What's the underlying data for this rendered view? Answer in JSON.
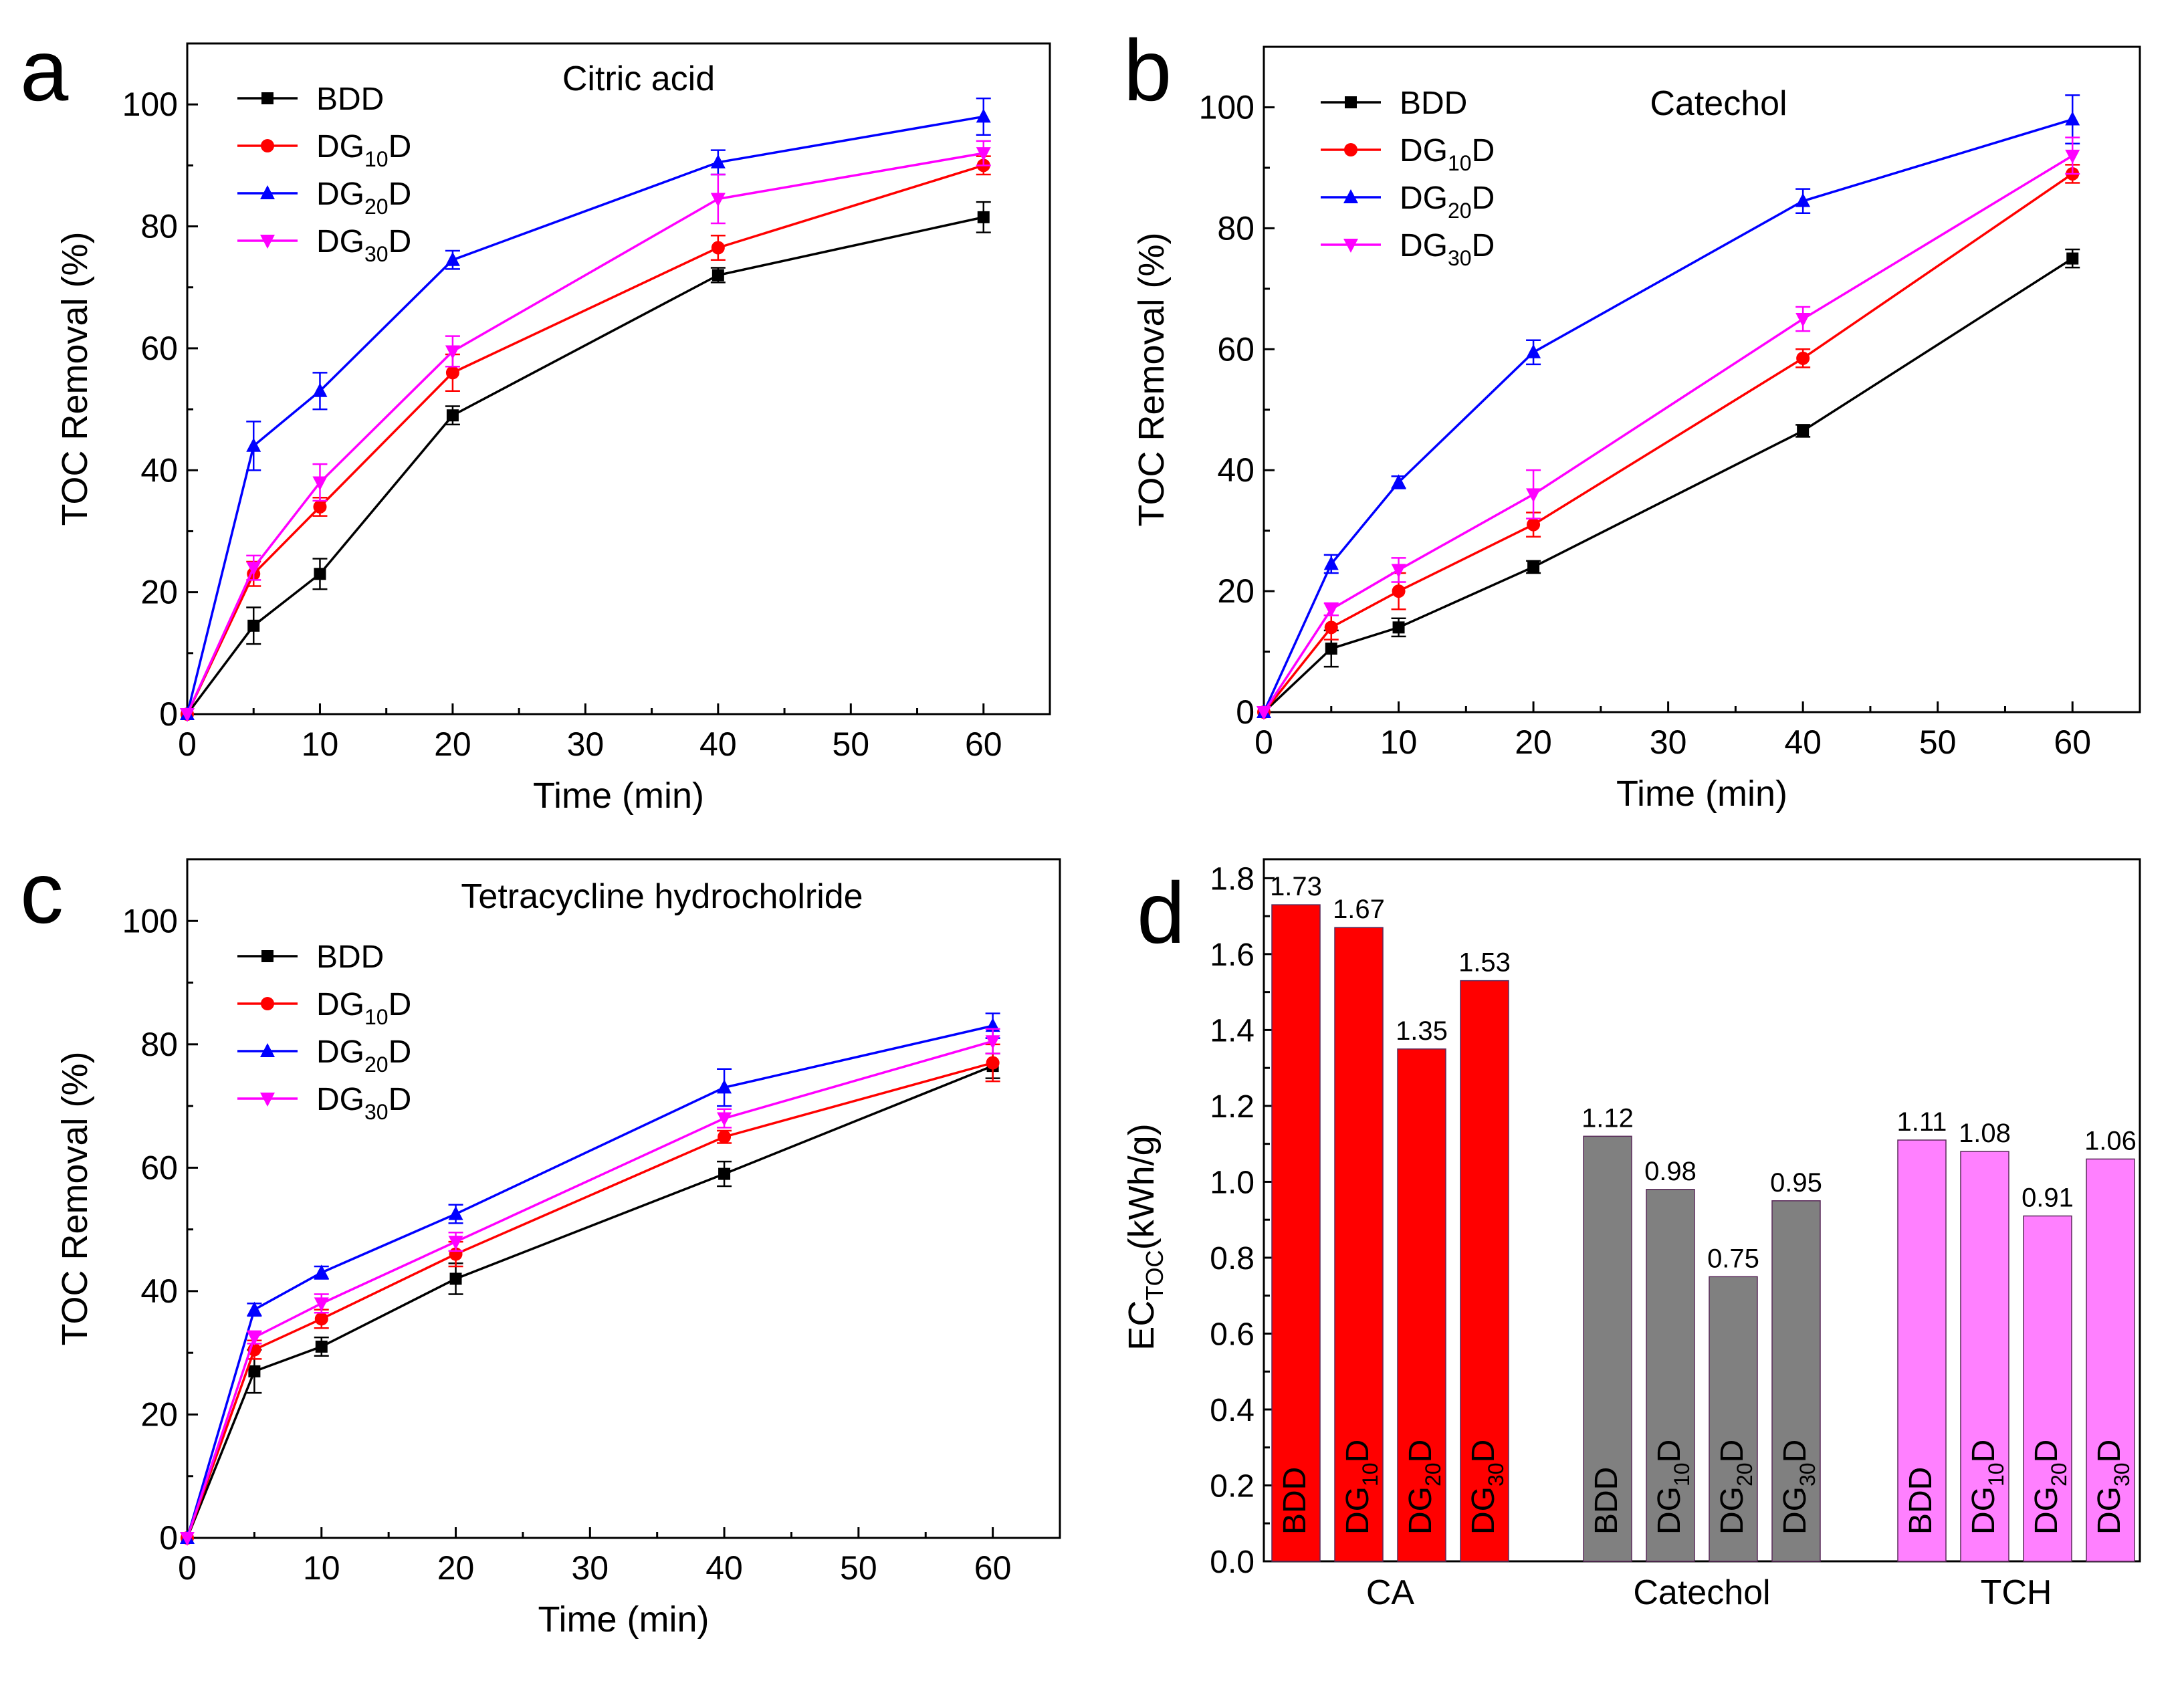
{
  "figure": {
    "panels": [
      {
        "letter": "a",
        "title": "Citric acid"
      },
      {
        "letter": "b",
        "title": "Catechol"
      },
      {
        "letter": "c",
        "title": "Tetracycline hydrocholride"
      },
      {
        "letter": "d",
        "title": ""
      }
    ]
  },
  "colors": {
    "BDD": "#000000",
    "DG10D": "#ff0000",
    "DG20D": "#0000ff",
    "DG30D": "#ff00ff",
    "gray": "#808080",
    "pink": "#ff80ff"
  },
  "chart_data": [
    {
      "type": "line",
      "panel": "a",
      "title": "Citric acid",
      "xlabel": "Time (min)",
      "ylabel": "TOC Removal (%)",
      "xlim": [
        0,
        65
      ],
      "ylim": [
        0,
        110
      ],
      "xticks": [
        0,
        10,
        20,
        30,
        40,
        50,
        60
      ],
      "yticks": [
        0,
        20,
        40,
        60,
        80,
        100
      ],
      "x": [
        0,
        5,
        10,
        20,
        40,
        60
      ],
      "series": [
        {
          "name": "BDD",
          "base": "BDD",
          "sub": "",
          "color": "#000000",
          "marker": "square",
          "values": [
            0,
            14.5,
            23,
            49,
            72,
            81.5
          ],
          "errors": [
            0,
            3,
            2.5,
            1.5,
            1.2,
            2.5
          ]
        },
        {
          "name": "DG10D",
          "base": "DG",
          "sub": "10",
          "color": "#ff0000",
          "marker": "circle",
          "values": [
            0,
            23,
            34,
            56,
            76.5,
            90
          ],
          "errors": [
            0,
            2,
            1.5,
            3,
            2,
            1.5
          ]
        },
        {
          "name": "DG20D",
          "base": "DG",
          "sub": "20",
          "color": "#0000ff",
          "marker": "triangle-up",
          "values": [
            0,
            44,
            53,
            74.5,
            90.5,
            98
          ],
          "errors": [
            0,
            4,
            3,
            1.5,
            2,
            3
          ]
        },
        {
          "name": "DG30D",
          "base": "DG",
          "sub": "30",
          "color": "#ff00ff",
          "marker": "triangle-down",
          "values": [
            0,
            24,
            38,
            59.5,
            84.5,
            92
          ],
          "errors": [
            0,
            2,
            3,
            2.5,
            4,
            2
          ]
        }
      ]
    },
    {
      "type": "line",
      "panel": "b",
      "title": "Catechol",
      "xlabel": "Time (min)",
      "ylabel": "TOC Removal (%)",
      "xlim": [
        0,
        65
      ],
      "ylim": [
        0,
        110
      ],
      "xticks": [
        0,
        10,
        20,
        30,
        40,
        50,
        60
      ],
      "yticks": [
        0,
        20,
        40,
        60,
        80,
        100
      ],
      "x": [
        0,
        5,
        10,
        20,
        40,
        60
      ],
      "series": [
        {
          "name": "BDD",
          "base": "BDD",
          "sub": "",
          "color": "#000000",
          "marker": "square",
          "values": [
            0,
            10.5,
            14,
            24,
            46.5,
            75
          ],
          "errors": [
            0,
            3,
            1.5,
            1,
            1,
            1.5
          ]
        },
        {
          "name": "DG10D",
          "base": "DG",
          "sub": "10",
          "color": "#ff0000",
          "marker": "circle",
          "values": [
            0,
            14,
            20,
            31,
            58.5,
            89
          ],
          "errors": [
            0,
            2,
            3,
            2,
            1.5,
            1.5
          ]
        },
        {
          "name": "DG20D",
          "base": "DG",
          "sub": "20",
          "color": "#0000ff",
          "marker": "triangle-up",
          "values": [
            0,
            24.5,
            38,
            59.5,
            84.5,
            98
          ],
          "errors": [
            0,
            1.5,
            1,
            2,
            2,
            4
          ]
        },
        {
          "name": "DG30D",
          "base": "DG",
          "sub": "30",
          "color": "#ff00ff",
          "marker": "triangle-down",
          "values": [
            0,
            17,
            23.5,
            36,
            65,
            92
          ],
          "errors": [
            0,
            1,
            2,
            4,
            2,
            3
          ]
        }
      ]
    },
    {
      "type": "line",
      "panel": "c",
      "title": "Tetracycline hydrocholride",
      "xlabel": "Time (min)",
      "ylabel": "TOC Removal (%)",
      "xlim": [
        0,
        65
      ],
      "ylim": [
        0,
        110
      ],
      "xticks": [
        0,
        10,
        20,
        30,
        40,
        50,
        60
      ],
      "yticks": [
        0,
        20,
        40,
        60,
        80,
        100
      ],
      "x": [
        0,
        5,
        10,
        20,
        40,
        60
      ],
      "series": [
        {
          "name": "BDD",
          "base": "BDD",
          "sub": "",
          "color": "#000000",
          "marker": "square",
          "values": [
            0,
            27,
            31,
            42,
            59,
            76.5
          ],
          "errors": [
            0,
            3.5,
            1.5,
            2.5,
            2,
            2
          ]
        },
        {
          "name": "DG10D",
          "base": "DG",
          "sub": "10",
          "color": "#ff0000",
          "marker": "circle",
          "values": [
            0,
            30.5,
            35.5,
            46,
            65,
            77
          ],
          "errors": [
            0,
            1.5,
            1.5,
            2,
            1,
            3
          ]
        },
        {
          "name": "DG20D",
          "base": "DG",
          "sub": "20",
          "color": "#0000ff",
          "marker": "triangle-up",
          "values": [
            0,
            37,
            43,
            52.5,
            73,
            83
          ],
          "errors": [
            0,
            1,
            1,
            1.5,
            3,
            2
          ]
        },
        {
          "name": "DG30D",
          "base": "DG",
          "sub": "30",
          "color": "#ff00ff",
          "marker": "triangle-down",
          "values": [
            0,
            32.5,
            38,
            48,
            68,
            80.5
          ],
          "errors": [
            0,
            1,
            1.5,
            1.5,
            1.5,
            2
          ]
        }
      ]
    },
    {
      "type": "bar",
      "panel": "d",
      "ylabel_main": "EC",
      "ylabel_sub": "TOC",
      "ylabel_unit": "(kWh/g)",
      "ylim": [
        0,
        1.85
      ],
      "yticks": [
        "0.0",
        "0.2",
        "0.4",
        "0.6",
        "0.8",
        "1.0",
        "1.2",
        "1.4",
        "1.6",
        "1.8"
      ],
      "groups": [
        {
          "name": "CA",
          "color": "#ff0000",
          "bars": [
            {
              "base": "BDD",
              "sub": "",
              "value": 1.73,
              "label": "1.73"
            },
            {
              "base": "DG",
              "sub": "10",
              "value": 1.67,
              "label": "1.67"
            },
            {
              "base": "DG",
              "sub": "20",
              "value": 1.35,
              "label": "1.35"
            },
            {
              "base": "DG",
              "sub": "30",
              "value": 1.53,
              "label": "1.53"
            }
          ]
        },
        {
          "name": "Catechol",
          "color": "#808080",
          "bars": [
            {
              "base": "BDD",
              "sub": "",
              "value": 1.12,
              "label": "1.12"
            },
            {
              "base": "DG",
              "sub": "10",
              "value": 0.98,
              "label": "0.98"
            },
            {
              "base": "DG",
              "sub": "20",
              "value": 0.75,
              "label": "0.75"
            },
            {
              "base": "DG",
              "sub": "30",
              "value": 0.95,
              "label": "0.95"
            }
          ]
        },
        {
          "name": "TCH",
          "color": "#ff80ff",
          "bars": [
            {
              "base": "BDD",
              "sub": "",
              "value": 1.11,
              "label": "1.11"
            },
            {
              "base": "DG",
              "sub": "10",
              "value": 1.08,
              "label": "1.08"
            },
            {
              "base": "DG",
              "sub": "20",
              "value": 0.91,
              "label": "0.91"
            },
            {
              "base": "DG",
              "sub": "30",
              "value": 1.06,
              "label": "1.06"
            }
          ]
        }
      ]
    }
  ]
}
